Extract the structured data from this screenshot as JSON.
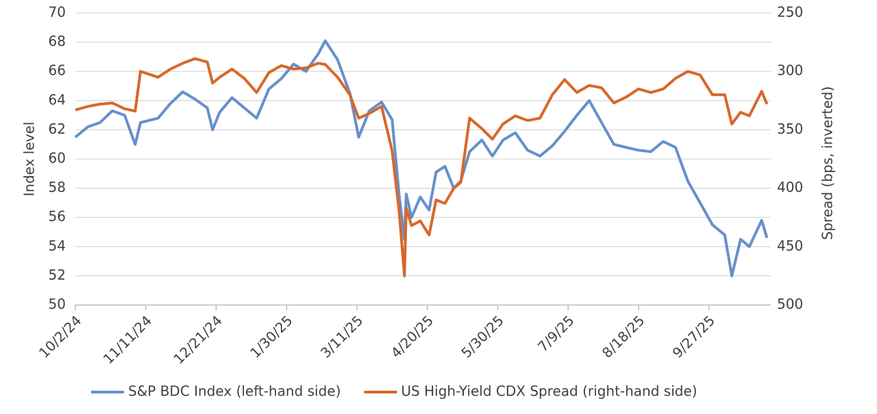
{
  "chart_data": {
    "type": "line",
    "y_label": "Index level",
    "y2_label": "Spread (bps, inverted)",
    "x": [
      "10/2/24",
      "10/9/24",
      "10/16/24",
      "10/23/24",
      "10/30/24",
      "11/5/24",
      "11/8/24",
      "11/18/24",
      "11/25/24",
      "12/2/24",
      "12/9/24",
      "12/16/24",
      "12/19/24",
      "12/23/24",
      "12/30/24",
      "1/6/25",
      "1/13/25",
      "1/20/25",
      "1/27/25",
      "2/3/25",
      "2/10/25",
      "2/17/25",
      "2/21/25",
      "2/28/25",
      "3/7/25",
      "3/12/25",
      "3/18/25",
      "3/25/25",
      "3/31/25",
      "4/4/25",
      "4/7/25",
      "4/8/25",
      "4/11/25",
      "4/16/25",
      "4/21/25",
      "4/25/25",
      "4/30/25",
      "5/5/25",
      "5/9/25",
      "5/14/25",
      "5/21/25",
      "5/27/25",
      "6/2/25",
      "6/9/25",
      "6/16/25",
      "6/23/25",
      "6/30/25",
      "7/7/25",
      "7/14/25",
      "7/21/25",
      "7/28/25",
      "8/4/25",
      "8/11/25",
      "8/18/25",
      "8/25/25",
      "9/1/25",
      "9/8/25",
      "9/15/25",
      "9/22/25",
      "9/29/25",
      "10/6/25",
      "10/10/25",
      "10/15/25",
      "10/20/25",
      "10/27/25",
      "10/30/25"
    ],
    "series": [
      {
        "name": "S&P BDC Index (left-hand side)",
        "color": "#6690cc",
        "values": [
          61.5,
          62.2,
          62.5,
          63.3,
          63.0,
          61.0,
          62.5,
          62.8,
          63.8,
          64.6,
          64.1,
          63.5,
          62.0,
          63.2,
          64.2,
          63.5,
          62.8,
          64.8,
          65.5,
          66.5,
          66.0,
          67.2,
          68.1,
          66.8,
          64.5,
          61.5,
          63.3,
          63.9,
          62.7,
          57.5,
          54.5,
          57.6,
          56.0,
          57.4,
          56.5,
          59.1,
          59.5,
          58.0,
          58.5,
          60.5,
          61.3,
          60.2,
          61.3,
          61.8,
          60.6,
          60.2,
          60.9,
          61.9,
          63.0,
          64.0,
          62.5,
          61.0,
          60.8,
          60.6,
          60.5,
          61.2,
          60.8,
          58.5,
          57.0,
          55.5,
          54.8,
          52.0,
          54.5,
          54.0,
          55.8,
          54.6
        ]
      },
      {
        "name": "US High-Yield CDX Spread (right-hand side)",
        "color": "#d8672a",
        "axis": "y2",
        "values": [
          333,
          330,
          328,
          327,
          332,
          334,
          300,
          305,
          298,
          293,
          289,
          292,
          310,
          305,
          298,
          306,
          318,
          301,
          295,
          298,
          297,
          293,
          294,
          305,
          320,
          340,
          336,
          330,
          368,
          420,
          475,
          417,
          432,
          428,
          440,
          410,
          413,
          400,
          395,
          340,
          349,
          358,
          345,
          338,
          342,
          340,
          320,
          307,
          318,
          312,
          314,
          327,
          322,
          315,
          318,
          315,
          306,
          300,
          303,
          320,
          320,
          345,
          335,
          338,
          317,
          328
        ]
      }
    ],
    "xlim": [
      "10/2/24",
      "10/31/25"
    ],
    "xticks": [
      "10/2/24",
      "11/11/24",
      "12/21/24",
      "1/30/25",
      "3/11/25",
      "4/20/25",
      "5/30/25",
      "7/9/25",
      "8/18/25",
      "9/27/25"
    ],
    "ylim": [
      50,
      70
    ],
    "yticks": [
      50,
      52,
      54,
      56,
      58,
      60,
      62,
      64,
      66,
      68,
      70
    ],
    "y2lim": [
      250,
      500
    ],
    "y2ticks": [
      250,
      300,
      350,
      400,
      450,
      500
    ],
    "y2_inverted": true,
    "grid": true,
    "legend": "bottom"
  }
}
